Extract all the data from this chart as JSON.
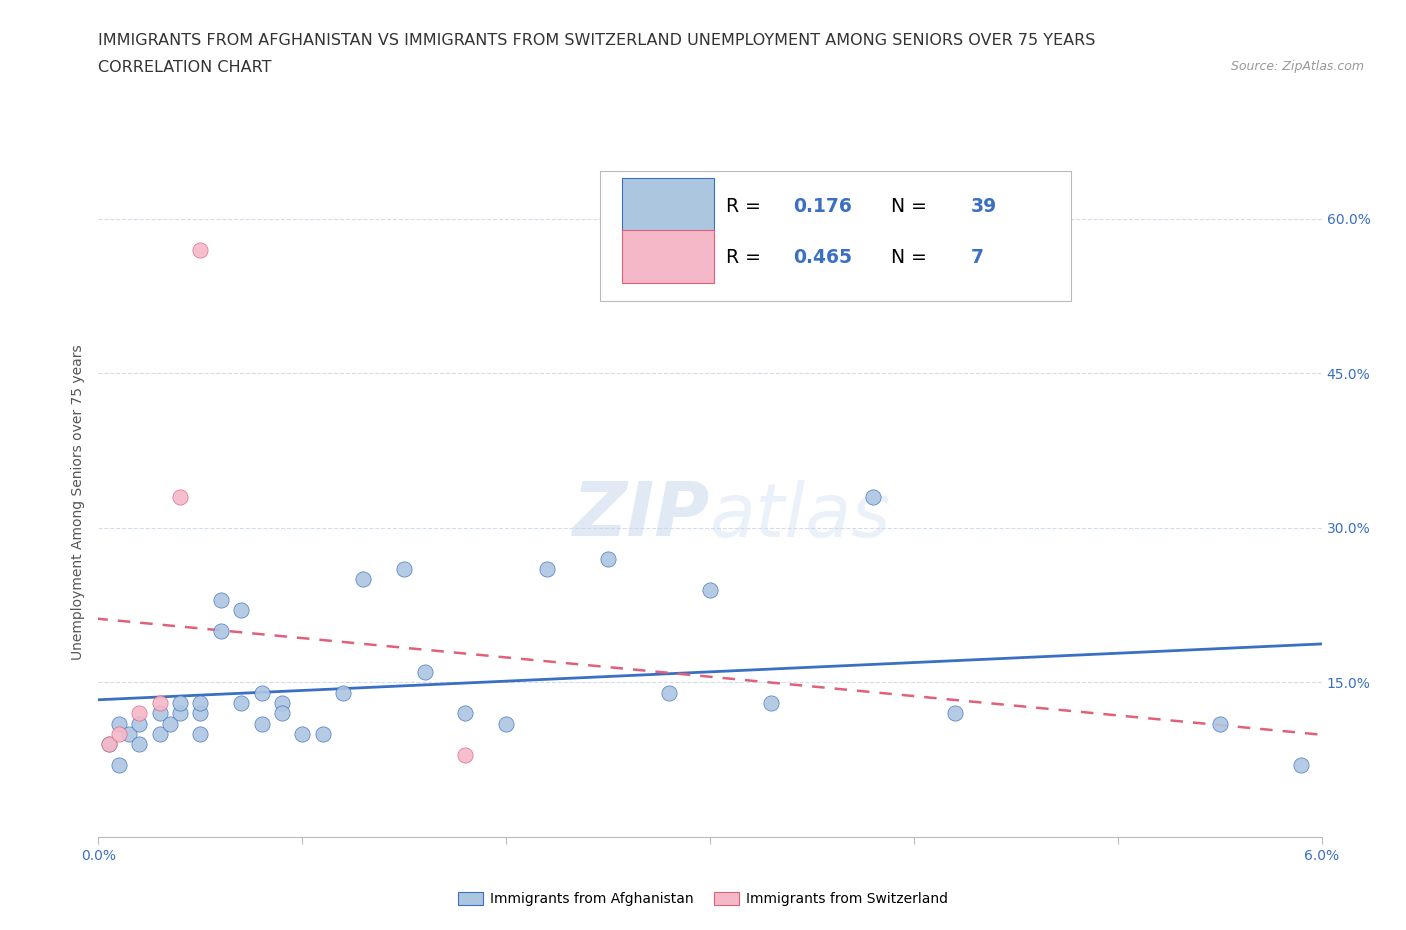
{
  "title_line1": "IMMIGRANTS FROM AFGHANISTAN VS IMMIGRANTS FROM SWITZERLAND UNEMPLOYMENT AMONG SENIORS OVER 75 YEARS",
  "title_line2": "CORRELATION CHART",
  "source_text": "Source: ZipAtlas.com",
  "ylabel": "Unemployment Among Seniors over 75 years",
  "watermark_zip": "ZIP",
  "watermark_atlas": "atlas",
  "xlim": [
    0.0,
    0.06
  ],
  "ylim": [
    0.0,
    0.65
  ],
  "xticks": [
    0.0,
    0.01,
    0.02,
    0.03,
    0.04,
    0.05,
    0.06
  ],
  "xticklabels": [
    "0.0%",
    "",
    "",
    "",
    "",
    "",
    "6.0%"
  ],
  "yticks": [
    0.0,
    0.15,
    0.3,
    0.45,
    0.6
  ],
  "right_yticklabels": [
    "",
    "15.0%",
    "30.0%",
    "45.0%",
    "60.0%"
  ],
  "afghanistan_x": [
    0.0005,
    0.001,
    0.001,
    0.0015,
    0.002,
    0.002,
    0.003,
    0.003,
    0.0035,
    0.004,
    0.004,
    0.005,
    0.005,
    0.005,
    0.006,
    0.006,
    0.007,
    0.007,
    0.008,
    0.008,
    0.009,
    0.009,
    0.01,
    0.011,
    0.012,
    0.013,
    0.015,
    0.016,
    0.018,
    0.02,
    0.022,
    0.025,
    0.028,
    0.03,
    0.033,
    0.038,
    0.042,
    0.055,
    0.059
  ],
  "afghanistan_y": [
    0.09,
    0.07,
    0.11,
    0.1,
    0.11,
    0.09,
    0.12,
    0.1,
    0.11,
    0.12,
    0.13,
    0.12,
    0.1,
    0.13,
    0.23,
    0.2,
    0.22,
    0.13,
    0.14,
    0.11,
    0.13,
    0.12,
    0.1,
    0.1,
    0.14,
    0.25,
    0.26,
    0.16,
    0.12,
    0.11,
    0.26,
    0.27,
    0.14,
    0.24,
    0.13,
    0.33,
    0.12,
    0.11,
    0.07
  ],
  "switzerland_x": [
    0.0005,
    0.001,
    0.002,
    0.003,
    0.004,
    0.005,
    0.018
  ],
  "switzerland_y": [
    0.09,
    0.1,
    0.12,
    0.13,
    0.33,
    0.57,
    0.08
  ],
  "afghanistan_color": "#adc6e0",
  "switzerland_color": "#f5b8c8",
  "afghanistan_line_color": "#3a6fc4",
  "switzerland_line_color": "#e0607a",
  "R_afghanistan": 0.176,
  "N_afghanistan": 39,
  "R_switzerland": 0.465,
  "N_switzerland": 7,
  "legend_afghanistan": "Immigrants from Afghanistan",
  "legend_switzerland": "Immigrants from Switzerland",
  "title_fontsize": 11.5,
  "source_fontsize": 9,
  "tick_fontsize": 10,
  "label_fontsize": 10,
  "background_color": "#ffffff",
  "grid_color": "#c8d4e8",
  "text_color": "#333333",
  "blue_color": "#3a6fc4"
}
